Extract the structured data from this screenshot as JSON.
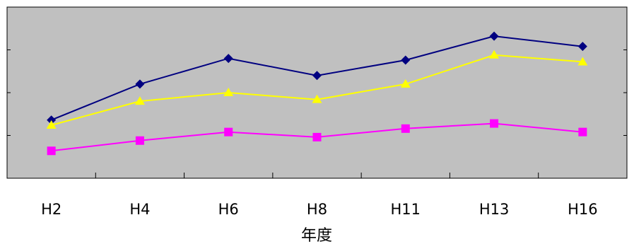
{
  "chart_data": {
    "type": "line",
    "title": "",
    "xlabel": "年度",
    "ylabel": "",
    "categories": [
      "H2",
      "H4",
      "H6",
      "H8",
      "H11",
      "H13",
      "H16"
    ],
    "ylim": [
      0,
      100
    ],
    "y_gridlines": [
      25,
      50,
      75
    ],
    "grid": false,
    "legend": "none",
    "plot_background": "#c0c0c0",
    "series": [
      {
        "color": "#000080",
        "marker": "diamond",
        "values": [
          34,
          55,
          70,
          60,
          69,
          83,
          77
        ]
      },
      {
        "color": "#ffff00",
        "marker": "triangle",
        "values": [
          31,
          45,
          50,
          46,
          55,
          72,
          68
        ]
      },
      {
        "color": "#ff00ff",
        "marker": "square",
        "values": [
          16,
          22,
          27,
          24,
          29,
          32,
          27
        ]
      }
    ]
  }
}
